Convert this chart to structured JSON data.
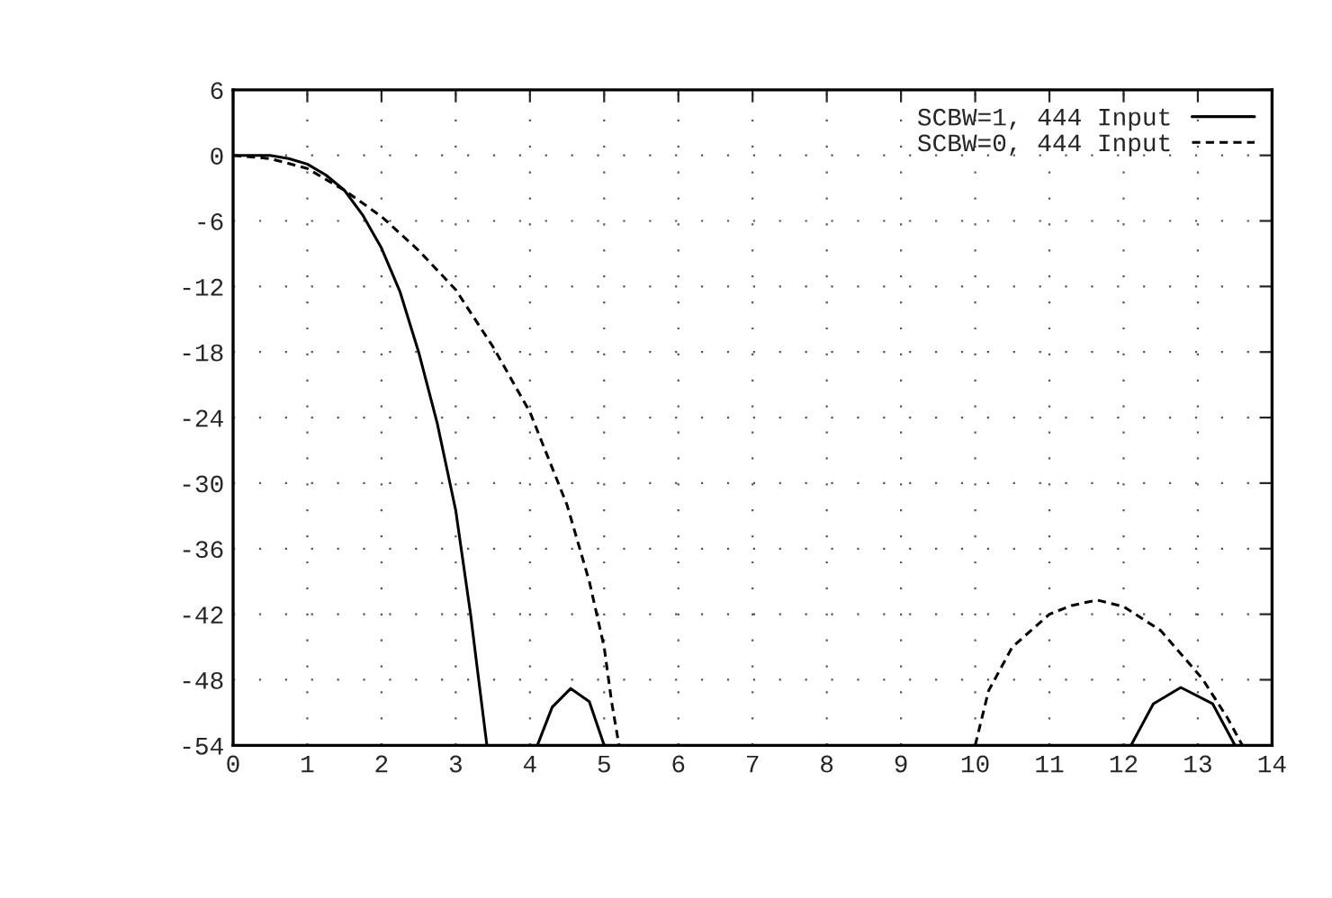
{
  "chart_data": {
    "type": "line",
    "series": [
      {
        "name": "SCBW=1, 444 Input",
        "color": "#000000",
        "line_style": "solid",
        "x": [
          0,
          0.5,
          0.75,
          1,
          1.25,
          1.5,
          1.75,
          2,
          2.25,
          2.5,
          2.75,
          3,
          3.2,
          3.3,
          3.42,
          null,
          4.1,
          4.3,
          4.55,
          4.8,
          5.0,
          null,
          12.1,
          12.4,
          12.77,
          13.2,
          13.5
        ],
        "values": [
          0,
          0,
          -0.3,
          -0.8,
          -1.8,
          -3.2,
          -5.5,
          -8.5,
          -12.5,
          -18,
          -24.5,
          -32.5,
          -42,
          -47.5,
          -54,
          null,
          -54,
          -50.5,
          -48.8,
          -50,
          -54,
          null,
          -54,
          -50.2,
          -48.7,
          -50.2,
          -54
        ]
      },
      {
        "name": "SCBW=0, 444 Input",
        "color": "#000000",
        "line_style": "dashed",
        "x": [
          0,
          0.5,
          1,
          1.5,
          2,
          2.5,
          3,
          3.5,
          4,
          4.5,
          4.8,
          5.0,
          5.1,
          5.2,
          null,
          10.0,
          10.18,
          10.5,
          11.0,
          11.3,
          11.64,
          12.0,
          12.5,
          13.06,
          13.4,
          13.6
        ],
        "values": [
          0,
          -0.3,
          -1.2,
          -3.2,
          -5.6,
          -8.7,
          -12.3,
          -17.5,
          -23.5,
          -32,
          -39,
          -45,
          -50,
          -54,
          null,
          -54,
          -49,
          -45,
          -42,
          -41.2,
          -40.7,
          -41.3,
          -43.5,
          -47.9,
          -51.5,
          -54
        ]
      }
    ],
    "xlim": [
      0,
      14
    ],
    "xticks": [
      0,
      1,
      2,
      3,
      4,
      5,
      6,
      7,
      8,
      9,
      10,
      11,
      12,
      13,
      14
    ],
    "ylim": [
      -54,
      6
    ],
    "yticks": [
      6,
      0,
      -6,
      -12,
      -18,
      -24,
      -30,
      -36,
      -42,
      -48,
      -54
    ],
    "grid": true,
    "legend": "top right"
  }
}
